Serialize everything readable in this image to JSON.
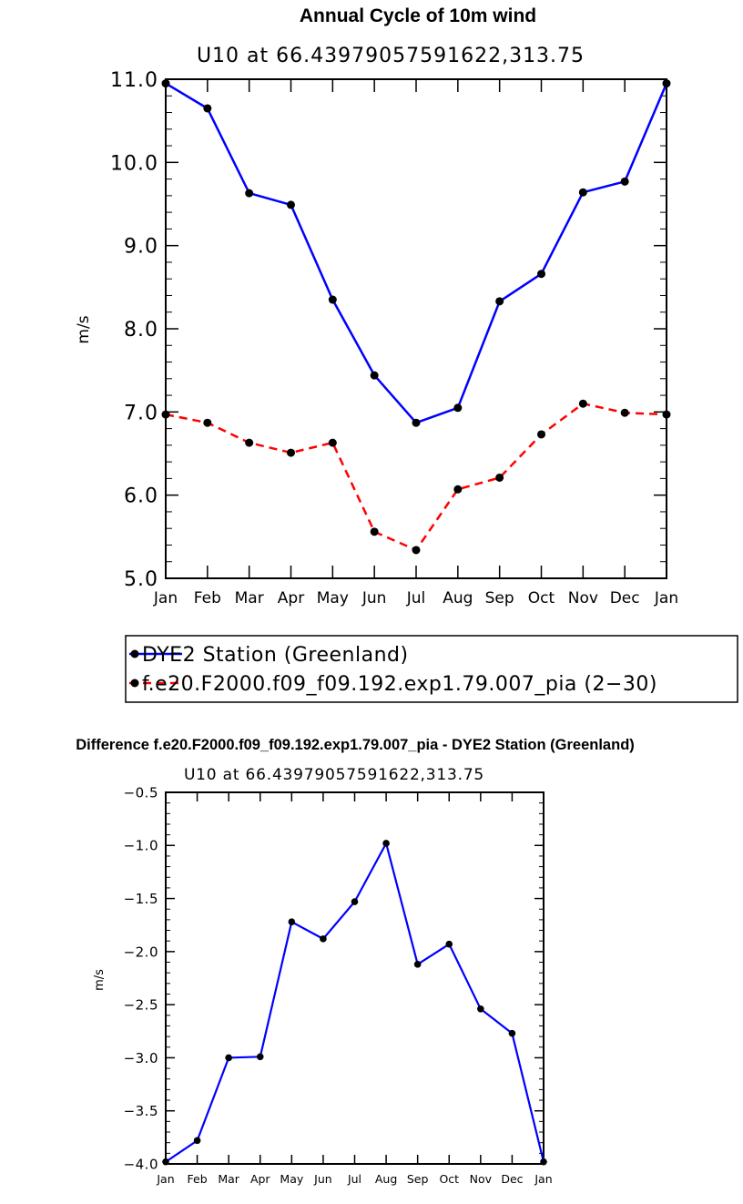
{
  "chart_data": [
    {
      "type": "line",
      "title": "Annual Cycle of 10m wind",
      "subtitle": "U10 at 66.43979057591622,313.75",
      "ylabel": "m/s",
      "xlabel": "",
      "ylim": [
        5.0,
        11.0
      ],
      "yticks": [
        "5.0",
        "6.0",
        "7.0",
        "8.0",
        "9.0",
        "10.0",
        "11.0"
      ],
      "categories": [
        "Jan",
        "Feb",
        "Mar",
        "Apr",
        "May",
        "Jun",
        "Jul",
        "Aug",
        "Sep",
        "Oct",
        "Nov",
        "Dec",
        "Jan"
      ],
      "series": [
        {
          "name": "DYE2 Station (Greenland)",
          "color": "#0000ff",
          "style": "solid",
          "values": [
            10.95,
            10.65,
            9.63,
            9.49,
            8.35,
            7.44,
            6.87,
            7.05,
            8.33,
            8.66,
            9.64,
            9.77,
            10.95
          ]
        },
        {
          "name": "f.e20.F2000.f09_f09.192.exp1.79.007_pia (2−30)",
          "color": "#ff0000",
          "style": "dashed",
          "values": [
            6.97,
            6.87,
            6.63,
            6.51,
            6.63,
            5.56,
            5.34,
            6.07,
            6.21,
            6.73,
            7.1,
            6.99,
            6.97
          ]
        }
      ],
      "legend": "below"
    },
    {
      "type": "line",
      "title": "Difference f.e20.F2000.f09_f09.192.exp1.79.007_pia - DYE2 Station (Greenland)",
      "subtitle": "U10 at 66.43979057591622,313.75",
      "ylabel": "m/s",
      "xlabel": "",
      "ylim": [
        -4.0,
        -0.5
      ],
      "yticks": [
        "−4.0",
        "−3.5",
        "−3.0",
        "−2.5",
        "−2.0",
        "−1.5",
        "−1.0",
        "−0.5"
      ],
      "categories": [
        "Jan",
        "Feb",
        "Mar",
        "Apr",
        "May",
        "Jun",
        "Jul",
        "Aug",
        "Sep",
        "Oct",
        "Nov",
        "Dec",
        "Jan"
      ],
      "series": [
        {
          "color": "#0000ff",
          "values": [
            -3.98,
            -3.78,
            -3.0,
            -2.99,
            -1.72,
            -1.88,
            -1.53,
            -0.98,
            -2.12,
            -1.93,
            -2.54,
            -2.77,
            -3.98
          ]
        }
      ]
    }
  ]
}
